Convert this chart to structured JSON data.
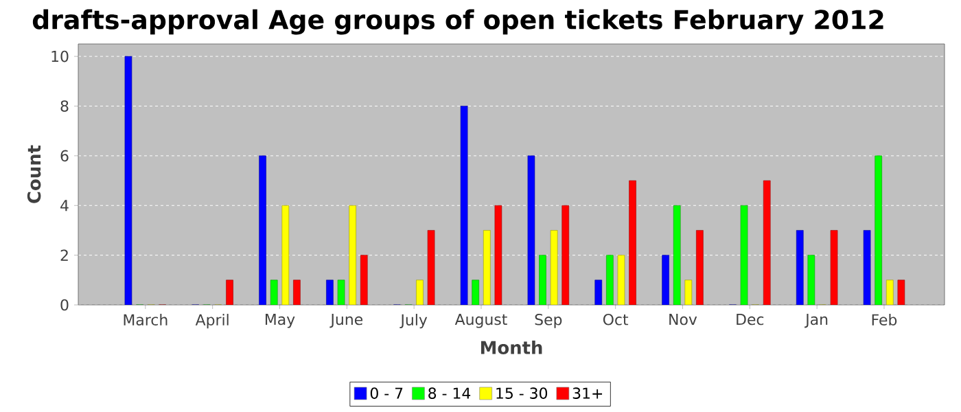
{
  "chart_data": {
    "type": "bar",
    "title": "drafts-approval Age groups of open tickets February 2012",
    "xlabel": "Month",
    "ylabel": "Count",
    "categories": [
      "March",
      "April",
      "May",
      "June",
      "July",
      "August",
      "Sep",
      "Oct",
      "Nov",
      "Dec",
      "Jan",
      "Feb"
    ],
    "series": [
      {
        "name": "0 - 7",
        "color": "#0000ff",
        "values": [
          10,
          0,
          6,
          1,
          0,
          8,
          6,
          1,
          2,
          0,
          3,
          3
        ]
      },
      {
        "name": "8 - 14",
        "color": "#00ff00",
        "values": [
          0,
          0,
          1,
          1,
          0,
          1,
          2,
          2,
          4,
          4,
          2,
          6
        ]
      },
      {
        "name": "15 - 30",
        "color": "#ffff00",
        "values": [
          0,
          0,
          4,
          4,
          1,
          3,
          3,
          2,
          1,
          0,
          0,
          1
        ]
      },
      {
        "name": "31+",
        "color": "#ff0000",
        "values": [
          0,
          1,
          1,
          2,
          3,
          4,
          4,
          5,
          3,
          5,
          3,
          1
        ]
      }
    ],
    "ylim": [
      0,
      10.5
    ],
    "yticks": [
      0,
      2,
      4,
      6,
      8,
      10
    ],
    "grid": "y",
    "legend": "bottom"
  }
}
